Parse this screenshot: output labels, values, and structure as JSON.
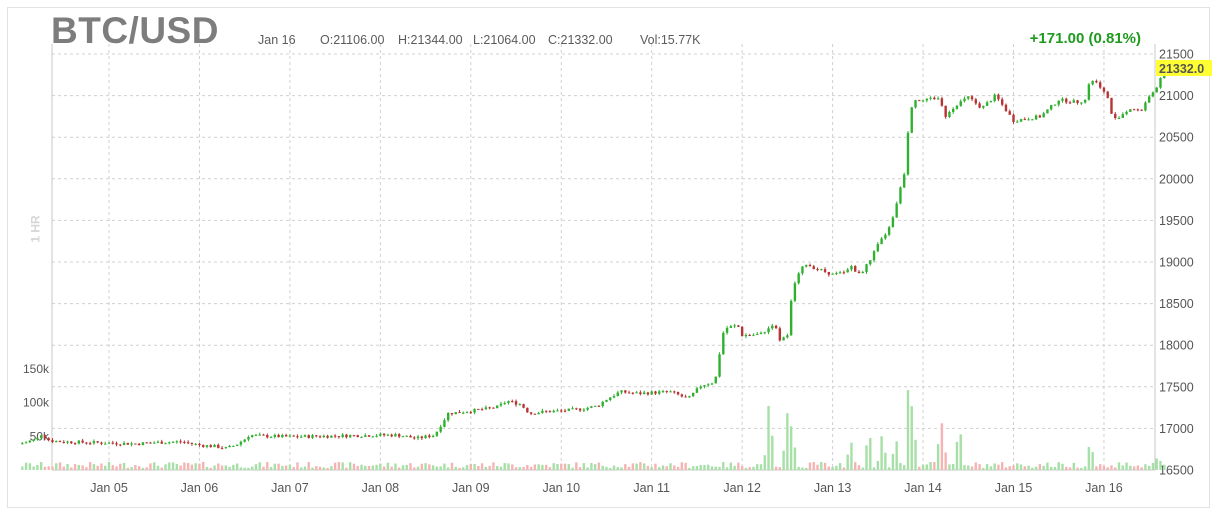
{
  "header": {
    "symbol": "BTC/USD",
    "date": "Jan 16",
    "open": "O:21106.00",
    "high": "H:21344.00",
    "low": "L:21064.00",
    "close": "C:21332.00",
    "volume": "Vol:15.77K",
    "change": "+171.00 (0.81%)",
    "period": "1 HR"
  },
  "colors": {
    "up": "#2fb12f",
    "down": "#b83434",
    "volume_up": "#a6e0a6",
    "volume_down": "#f5b4b4",
    "last_price_bg": "#ffff33",
    "change": "#1e9b1e",
    "grid": "#d0d0d0"
  },
  "chart_data": {
    "type": "candlestick",
    "interval": "1 HR",
    "x_ticks": [
      "Jan 05",
      "Jan 06",
      "Jan 07",
      "Jan 08",
      "Jan 09",
      "Jan 10",
      "Jan 11",
      "Jan 12",
      "Jan 13",
      "Jan 14",
      "Jan 15",
      "Jan 16"
    ],
    "y_ticks": [
      16500,
      17000,
      17500,
      18000,
      18500,
      19000,
      19500,
      20000,
      20500,
      21000,
      21500
    ],
    "ylim": [
      16500,
      21500
    ],
    "volume_ticks": [
      "150k",
      "100k",
      "50k"
    ],
    "volume_max": 175000,
    "last_price": "21332.0",
    "price_path": [
      [
        4.0,
        16810
      ],
      [
        4.2,
        16870
      ],
      [
        4.25,
        16930
      ],
      [
        4.35,
        16850
      ],
      [
        4.5,
        16840
      ],
      [
        4.8,
        16830
      ],
      [
        5.0,
        16825
      ],
      [
        5.3,
        16815
      ],
      [
        5.5,
        16830
      ],
      [
        5.8,
        16840
      ],
      [
        6.0,
        16800
      ],
      [
        6.2,
        16780
      ],
      [
        6.3,
        16760
      ],
      [
        6.4,
        16800
      ],
      [
        6.5,
        16870
      ],
      [
        6.55,
        16920
      ],
      [
        6.65,
        16910
      ],
      [
        7.0,
        16900
      ],
      [
        7.5,
        16910
      ],
      [
        8.0,
        16920
      ],
      [
        8.2,
        16920
      ],
      [
        8.4,
        16880
      ],
      [
        8.5,
        16900
      ],
      [
        8.6,
        16920
      ],
      [
        8.65,
        17010
      ],
      [
        8.75,
        17180
      ],
      [
        9.0,
        17210
      ],
      [
        9.2,
        17240
      ],
      [
        9.3,
        17260
      ],
      [
        9.4,
        17330
      ],
      [
        9.55,
        17290
      ],
      [
        9.65,
        17180
      ],
      [
        9.8,
        17200
      ],
      [
        10.0,
        17210
      ],
      [
        10.2,
        17230
      ],
      [
        10.4,
        17270
      ],
      [
        10.5,
        17350
      ],
      [
        10.65,
        17440
      ],
      [
        10.85,
        17420
      ],
      [
        11.0,
        17430
      ],
      [
        11.2,
        17440
      ],
      [
        11.3,
        17400
      ],
      [
        11.4,
        17350
      ],
      [
        11.55,
        17520
      ],
      [
        11.7,
        17560
      ],
      [
        11.75,
        17900
      ],
      [
        11.8,
        18200
      ],
      [
        11.95,
        18240
      ],
      [
        12.0,
        18120
      ],
      [
        12.2,
        18130
      ],
      [
        12.3,
        18210
      ],
      [
        12.35,
        18270
      ],
      [
        12.42,
        18050
      ],
      [
        12.5,
        18120
      ],
      [
        12.55,
        18600
      ],
      [
        12.6,
        18820
      ],
      [
        12.7,
        18980
      ],
      [
        12.8,
        18930
      ],
      [
        13.0,
        18850
      ],
      [
        13.15,
        18870
      ],
      [
        13.2,
        18960
      ],
      [
        13.3,
        18840
      ],
      [
        13.4,
        19000
      ],
      [
        13.5,
        19200
      ],
      [
        13.55,
        19280
      ],
      [
        13.65,
        19450
      ],
      [
        13.75,
        19900
      ],
      [
        13.8,
        20100
      ],
      [
        13.85,
        20800
      ],
      [
        13.9,
        20950
      ],
      [
        14.0,
        20960
      ],
      [
        14.2,
        20970
      ],
      [
        14.22,
        20730
      ],
      [
        14.3,
        20800
      ],
      [
        14.35,
        20880
      ],
      [
        14.5,
        20980
      ],
      [
        14.65,
        20850
      ],
      [
        14.8,
        21000
      ],
      [
        15.0,
        20700
      ],
      [
        15.3,
        20750
      ],
      [
        15.4,
        20850
      ],
      [
        15.5,
        20950
      ],
      [
        15.7,
        20920
      ],
      [
        15.8,
        20950
      ],
      [
        15.85,
        21200
      ],
      [
        15.95,
        21130
      ],
      [
        16.05,
        20950
      ],
      [
        16.1,
        20700
      ],
      [
        16.3,
        20850
      ],
      [
        16.4,
        20800
      ],
      [
        16.5,
        21000
      ],
      [
        16.6,
        21100
      ],
      [
        16.65,
        21332
      ]
    ],
    "volume_spikes": [
      [
        12.3,
        110000
      ],
      [
        12.5,
        80000
      ],
      [
        12.55,
        75000
      ],
      [
        13.2,
        45000
      ],
      [
        13.4,
        60000
      ],
      [
        13.55,
        55000
      ],
      [
        13.7,
        45000
      ],
      [
        13.85,
        160000
      ],
      [
        13.9,
        60000
      ],
      [
        14.2,
        80000
      ],
      [
        14.4,
        70000
      ],
      [
        14.25,
        25000
      ],
      [
        15.85,
        45000
      ],
      [
        16.6,
        20000
      ]
    ]
  }
}
